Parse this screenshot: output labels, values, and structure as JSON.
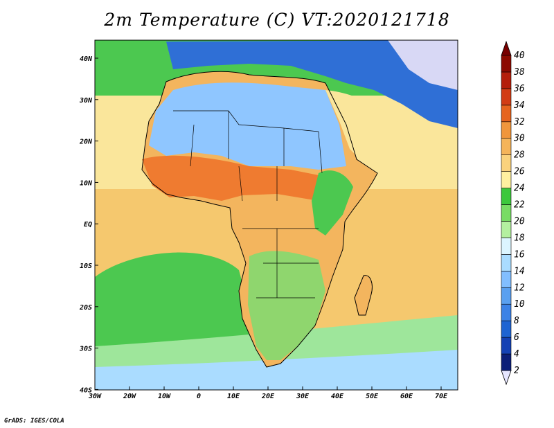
{
  "title": "2m Temperature (C) VT:2020121718",
  "credit": "GrADS: IGES/COLA",
  "x_ticks": [
    "30W",
    "20W",
    "10W",
    "0",
    "10E",
    "20E",
    "30E",
    "40E",
    "50E",
    "60E",
    "70E"
  ],
  "y_ticks": [
    "40N",
    "30N",
    "20N",
    "10N",
    "EQ",
    "10S",
    "20S",
    "30S",
    "40S"
  ],
  "colorbar": {
    "levels": [
      2,
      4,
      6,
      8,
      10,
      12,
      14,
      16,
      18,
      20,
      22,
      24,
      26,
      28,
      30,
      32,
      34,
      36,
      38,
      40
    ],
    "labels": [
      "2",
      "4",
      "6",
      "8",
      "10",
      "12",
      "14",
      "16",
      "18",
      "20",
      "22",
      "24",
      "26",
      "28",
      "30",
      "32",
      "34",
      "36",
      "38",
      "40"
    ],
    "colors": [
      "#e6e6ff",
      "#0b1e78",
      "#1441b4",
      "#1e64d2",
      "#3c82e6",
      "#5aa0f0",
      "#82beff",
      "#aadcff",
      "#dcf5ff",
      "#b4f0a0",
      "#78dc64",
      "#3cc83c",
      "#fff0a0",
      "#fad27d",
      "#f5b45a",
      "#f0963c",
      "#e6641e",
      "#d23c14",
      "#b41e0a",
      "#8c0a00",
      "#780000"
    ]
  },
  "colors": {
    "ocean_warm": "#f5c86e",
    "ocean_mild": "#fae69b",
    "ocean_cool": "#4cc850",
    "ocean_cold": "#aadcff",
    "land_base": "#f3b55e",
    "sahara_cool": "#8fc6ff",
    "sahel_hot": "#ef7b30",
    "europe_cold": "#2f6fd6",
    "border": "#000000"
  }
}
